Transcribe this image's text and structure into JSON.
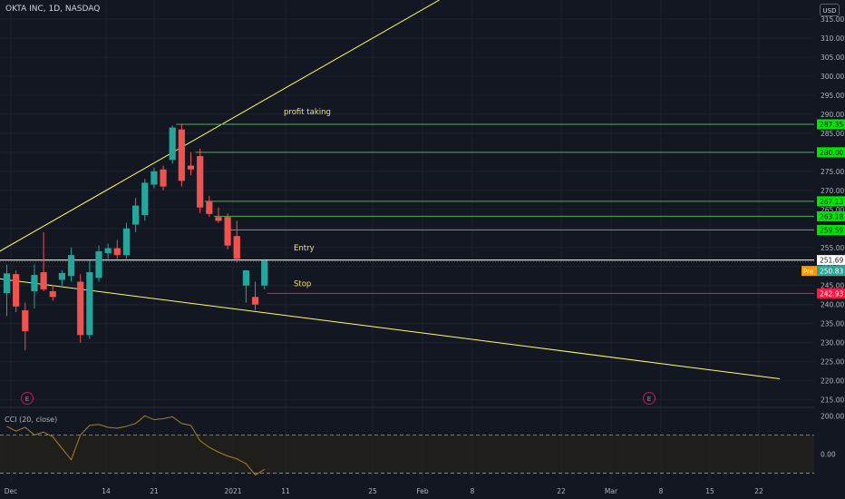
{
  "header": {
    "symbol_title": "OKTA INC, 1D, NASDAQ",
    "currency": "USD"
  },
  "indicator": {
    "title": "CCI (20, close)",
    "axis_labels": [
      "200.00",
      "0.00"
    ]
  },
  "colors": {
    "background": "#131722",
    "grid": "#1e222d",
    "up_candle": "#26a69a",
    "down_candle": "#ef5350",
    "trendline": "#ffff66",
    "target_line": "#4caf50",
    "target_label_bg": "#00e600",
    "entry_line": "#ffffff",
    "stop_line": "#ff1744",
    "annotation_text": "#f5e56b",
    "pre_badge": "#ff9800",
    "current_price_bg": "#26a69a",
    "cci_line": "#a08428"
  },
  "chart_data": {
    "type": "candlestick",
    "title": "OKTA INC, 1D, NASDAQ",
    "y_axis": {
      "ylim": [
        213,
        320
      ],
      "ticks": [
        "315.00",
        "310.00",
        "305.00",
        "300.00",
        "295.00",
        "290.00",
        "285.00",
        "280.00",
        "275.00",
        "270.00",
        "265.00",
        "260.00",
        "255.00",
        "250.00",
        "245.00",
        "240.00",
        "235.00",
        "230.00",
        "225.00",
        "220.00",
        "215.00"
      ]
    },
    "x_axis": {
      "ticks": [
        "Dec",
        "14",
        "21",
        "2021",
        "11",
        "25",
        "Feb",
        "8",
        "22",
        "Mar",
        "8",
        "15",
        "22"
      ]
    },
    "candles": [
      {
        "o": 243.0,
        "h": 250.5,
        "l": 237.0,
        "c": 248.2
      },
      {
        "o": 248.0,
        "h": 249.0,
        "l": 238.0,
        "c": 239.5
      },
      {
        "o": 238.5,
        "h": 240.5,
        "l": 228.0,
        "c": 233.0
      },
      {
        "o": 243.5,
        "h": 250.5,
        "l": 239.0,
        "c": 247.8
      },
      {
        "o": 248.5,
        "h": 259.0,
        "l": 243.5,
        "c": 244.0
      },
      {
        "o": 243.5,
        "h": 245.0,
        "l": 241.0,
        "c": 242.0
      },
      {
        "o": 246.5,
        "h": 249.0,
        "l": 245.0,
        "c": 248.3
      },
      {
        "o": 247.5,
        "h": 255.0,
        "l": 246.0,
        "c": 253.0
      },
      {
        "o": 246.0,
        "h": 248.0,
        "l": 230.0,
        "c": 232.0
      },
      {
        "o": 232.0,
        "h": 251.5,
        "l": 231.0,
        "c": 248.5
      },
      {
        "o": 247.0,
        "h": 255.5,
        "l": 246.0,
        "c": 254.0
      },
      {
        "o": 253.5,
        "h": 256.0,
        "l": 252.0,
        "c": 254.8
      },
      {
        "o": 254.8,
        "h": 257.0,
        "l": 252.0,
        "c": 253.0
      },
      {
        "o": 253.0,
        "h": 261.5,
        "l": 252.0,
        "c": 260.0
      },
      {
        "o": 261.0,
        "h": 268.0,
        "l": 259.0,
        "c": 266.0
      },
      {
        "o": 263.5,
        "h": 273.0,
        "l": 262.0,
        "c": 272.0
      },
      {
        "o": 271.5,
        "h": 276.0,
        "l": 270.5,
        "c": 275.0
      },
      {
        "o": 275.5,
        "h": 276.5,
        "l": 270.0,
        "c": 271.0
      },
      {
        "o": 278.0,
        "h": 287.0,
        "l": 277.0,
        "c": 286.5
      },
      {
        "o": 286.0,
        "h": 287.5,
        "l": 271.0,
        "c": 272.5
      },
      {
        "o": 276.5,
        "h": 280.0,
        "l": 274.0,
        "c": 275.5
      },
      {
        "o": 279.0,
        "h": 281.0,
        "l": 264.0,
        "c": 265.5
      },
      {
        "o": 267.0,
        "h": 268.5,
        "l": 263.0,
        "c": 263.8
      },
      {
        "o": 263.0,
        "h": 265.5,
        "l": 261.5,
        "c": 262.0
      },
      {
        "o": 263.0,
        "h": 264.0,
        "l": 254.5,
        "c": 255.5
      },
      {
        "o": 258.0,
        "h": 262.0,
        "l": 251.0,
        "c": 252.0
      },
      {
        "o": 245.0,
        "h": 248.5,
        "l": 240.5,
        "c": 249.0
      },
      {
        "o": 242.0,
        "h": 246.0,
        "l": 238.5,
        "c": 240.0
      },
      {
        "o": 245.0,
        "h": 252.0,
        "l": 244.0,
        "c": 251.6
      }
    ],
    "levels": [
      {
        "role": "target",
        "price": 287.35,
        "label": "287.35"
      },
      {
        "role": "target",
        "price": 280.0,
        "label": "280.00"
      },
      {
        "role": "target",
        "price": 267.13,
        "label": "267.13"
      },
      {
        "role": "target",
        "price": 263.18,
        "label": "263.18"
      },
      {
        "role": "target",
        "price": 259.59,
        "label": "259.59"
      },
      {
        "role": "entry",
        "price": 251.69,
        "label": "251.69"
      },
      {
        "role": "stop",
        "price": 242.93,
        "label": "242.93"
      }
    ],
    "pre_market": {
      "badge": "Pre",
      "price": 251.69,
      "label": "251.69"
    },
    "last_price": {
      "price": 250.83,
      "label": "250.83"
    },
    "annotations": [
      {
        "text": "profit taking",
        "price": 290.0
      },
      {
        "text": "Entry",
        "price": 254.2
      },
      {
        "text": "Stop",
        "price": 244.8
      }
    ],
    "earnings_markers": [
      {
        "text": "E",
        "position": "below Dec 2020 candles"
      },
      {
        "text": "E",
        "position": "late February"
      }
    ],
    "trendlines": [
      {
        "from": {
          "candle": -1.5,
          "price": 253.0
        },
        "to": {
          "candle": 47,
          "price": 320.0
        }
      },
      {
        "from": {
          "candle": -1.5,
          "price": 247.0
        },
        "to": {
          "candle": 84,
          "price": 220.5
        }
      }
    ],
    "cci": {
      "name": "CCI (20, close)",
      "upper_band": 100,
      "lower_band": -100,
      "ylim": [
        -140,
        230
      ],
      "values": [
        145,
        120,
        140,
        100,
        115,
        90,
        30,
        -30,
        100,
        150,
        155,
        140,
        135,
        145,
        160,
        200,
        180,
        185,
        195,
        160,
        150,
        70,
        35,
        10,
        -10,
        -25,
        -50,
        -110,
        -80
      ]
    }
  }
}
